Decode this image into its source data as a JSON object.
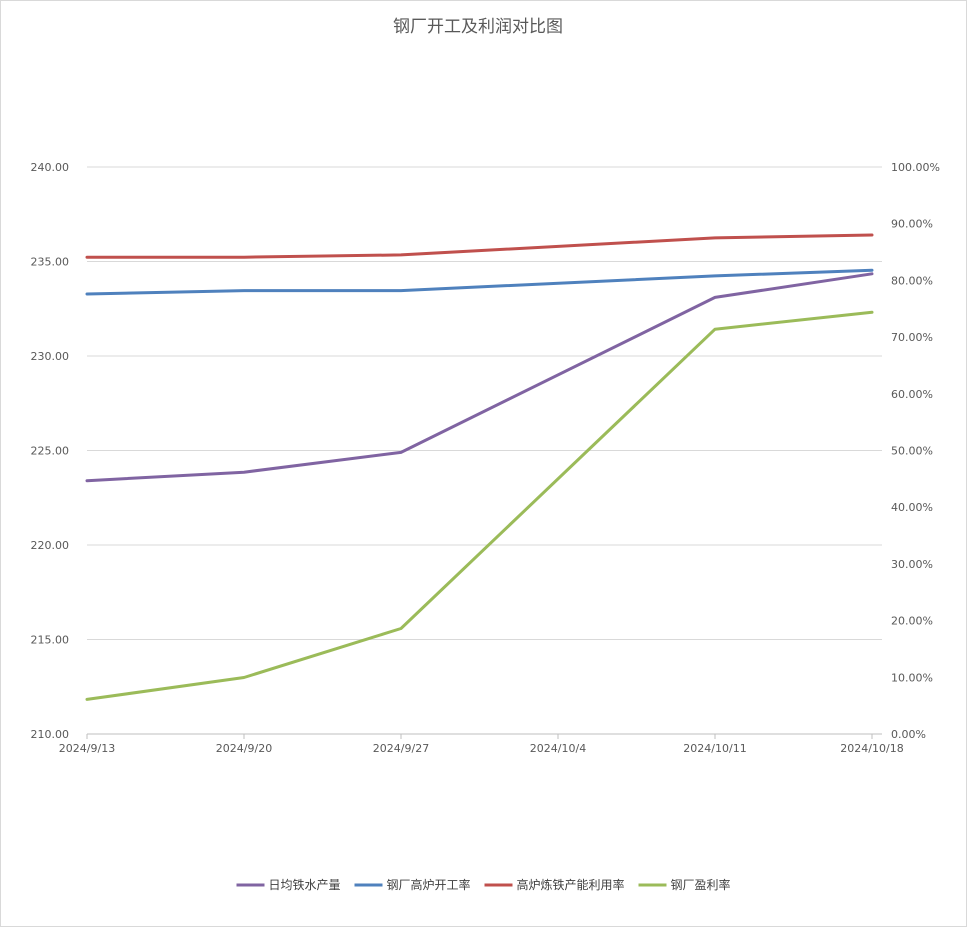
{
  "chart_data": {
    "type": "line",
    "title": "钢厂开工及利润对比图",
    "categories": [
      "2024/9/13",
      "2024/9/20",
      "2024/9/27",
      "2024/10/4",
      "2024/10/11",
      "2024/10/18"
    ],
    "x_positions": [
      0,
      7,
      14,
      21,
      28,
      35
    ],
    "y_left": {
      "min": 210,
      "max": 240,
      "step": 5,
      "ticks": [
        "210.00",
        "215.00",
        "220.00",
        "225.00",
        "230.00",
        "235.00",
        "240.00"
      ]
    },
    "y_right": {
      "min": 0,
      "max": 100,
      "step": 10,
      "ticks": [
        "0.00%",
        "10.00%",
        "20.00%",
        "30.00%",
        "40.00%",
        "50.00%",
        "60.00%",
        "70.00%",
        "80.00%",
        "90.00%",
        "100.00%"
      ]
    },
    "grid": true,
    "legend_position": "bottom",
    "series": [
      {
        "name": "日均铁水产量",
        "axis": "left",
        "color": "#8064a2",
        "x": [
          0,
          7,
          14,
          28,
          35
        ],
        "values": [
          223.4,
          223.85,
          224.9,
          233.1,
          234.35
        ]
      },
      {
        "name": "钢厂高炉开工率",
        "axis": "right",
        "color": "#4f81bd",
        "x": [
          0,
          7,
          14,
          28,
          35
        ],
        "values": [
          77.6,
          78.2,
          78.2,
          80.8,
          81.8
        ]
      },
      {
        "name": "高炉炼铁产能利用率",
        "axis": "right",
        "color": "#c0504d",
        "x": [
          0,
          7,
          14,
          28,
          35
        ],
        "values": [
          84.1,
          84.1,
          84.5,
          87.5,
          88.0
        ]
      },
      {
        "name": "钢厂盈利率",
        "axis": "right",
        "color": "#9bbb59",
        "x": [
          0,
          7,
          14,
          28,
          35
        ],
        "values": [
          6.1,
          9.96,
          18.6,
          71.4,
          74.4
        ]
      }
    ]
  }
}
